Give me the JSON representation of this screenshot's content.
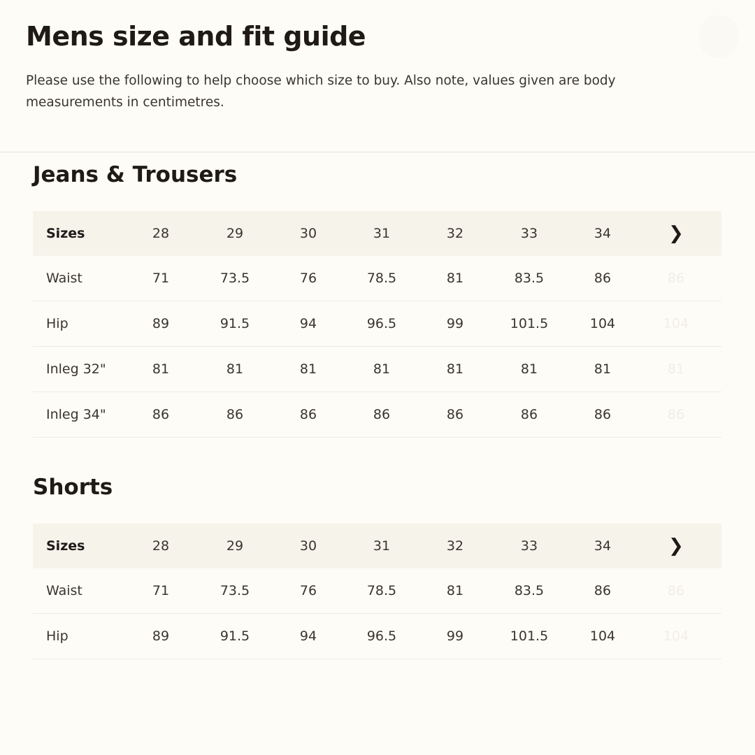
{
  "header": {
    "title": "Mens size and fit guide",
    "description": "Please use the following to help choose which size to buy. Also note, values given are body measurements in centimetres."
  },
  "tables": [
    {
      "title": "Jeans & Trousers",
      "header_label": "Sizes",
      "sizes": [
        "28",
        "29",
        "30",
        "31",
        "32",
        "33",
        "34"
      ],
      "rows": [
        {
          "label": "Waist",
          "values": [
            "71",
            "73.5",
            "76",
            "78.5",
            "81",
            "83.5",
            "86"
          ],
          "next": "86"
        },
        {
          "label": "Hip",
          "values": [
            "89",
            "91.5",
            "94",
            "96.5",
            "99",
            "101.5",
            "104"
          ],
          "next": "104"
        },
        {
          "label": "Inleg 32\"",
          "values": [
            "81",
            "81",
            "81",
            "81",
            "81",
            "81",
            "81"
          ],
          "next": "81"
        },
        {
          "label": "Inleg 34\"",
          "values": [
            "86",
            "86",
            "86",
            "86",
            "86",
            "86",
            "86"
          ],
          "next": "86"
        }
      ]
    },
    {
      "title": "Shorts",
      "header_label": "Sizes",
      "sizes": [
        "28",
        "29",
        "30",
        "31",
        "32",
        "33",
        "34"
      ],
      "rows": [
        {
          "label": "Waist",
          "values": [
            "71",
            "73.5",
            "76",
            "78.5",
            "81",
            "83.5",
            "86"
          ],
          "next": "86"
        },
        {
          "label": "Hip",
          "values": [
            "89",
            "91.5",
            "94",
            "96.5",
            "99",
            "101.5",
            "104"
          ],
          "next": "104"
        }
      ]
    }
  ],
  "icons": {
    "next": "chevron-right-icon",
    "close": "close-icon"
  },
  "colors": {
    "background": "#fdfcf6",
    "header_row": "#f6f3eb",
    "text": "#2b2622"
  }
}
